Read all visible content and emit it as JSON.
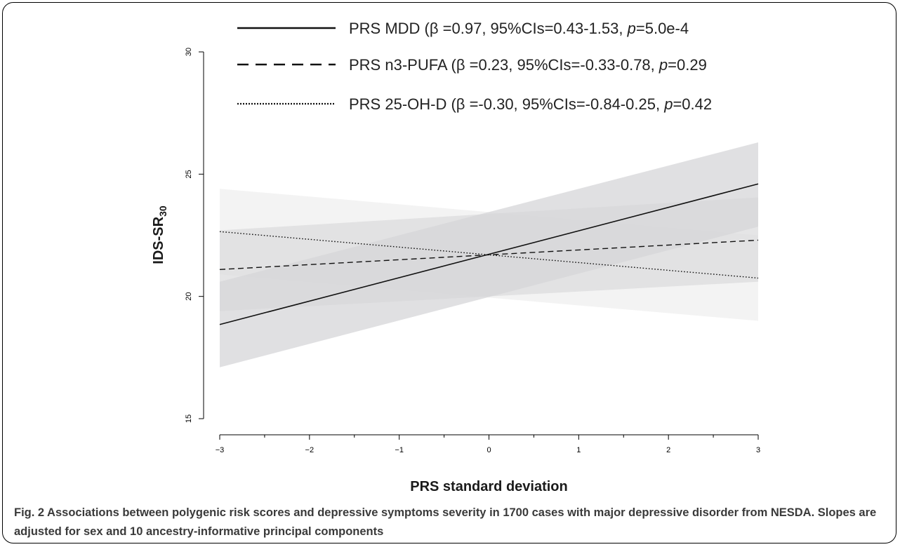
{
  "chart_data": {
    "type": "line",
    "x": [
      -3,
      3
    ],
    "xlabel": "PRS standard deviation",
    "ylabel": "IDS-SR",
    "ylabel_subscript": "30",
    "xlim": [
      -3,
      3
    ],
    "ylim": [
      15,
      30
    ],
    "x_ticks": [
      "−3",
      "−2",
      "−1",
      "0",
      "1",
      "2",
      "3"
    ],
    "y_ticks": [
      "15",
      "20",
      "25",
      "30"
    ],
    "grid": false,
    "legend_position": "top",
    "series": [
      {
        "name": "PRS MDD",
        "style": "solid",
        "label_prefix": "PRS MDD (",
        "label_beta": "β =0.97, 95%CIs=0.43-1.53, ",
        "label_p": "p",
        "label_p_value": "=5.0e-4",
        "y": [
          18.85,
          24.6
        ],
        "ci_lower": [
          17.1,
          22.85
        ],
        "ci_upper": [
          20.6,
          26.3
        ],
        "band_color": "#d6d6d8"
      },
      {
        "name": "PRS n3-PUFA",
        "style": "dashed",
        "label_prefix": "PRS n3-PUFA (",
        "label_beta": "β =0.23, 95%CIs=-0.33-0.78, ",
        "label_p": "p",
        "label_p_value": "=0.29",
        "y": [
          21.1,
          22.3
        ],
        "ci_lower": [
          19.4,
          20.6
        ],
        "ci_upper": [
          22.7,
          24.05
        ],
        "band_color": "#dcdcde"
      },
      {
        "name": "PRS 25-OH-D",
        "style": "dotted",
        "label_prefix": "PRS 25-OH-D (",
        "label_beta": "β =-0.30, 95%CIs=-0.84-0.25, ",
        "label_p": "p",
        "label_p_value": "=0.42",
        "y": [
          22.65,
          20.75
        ],
        "ci_lower": [
          20.9,
          19.0
        ],
        "ci_upper": [
          24.4,
          22.5
        ],
        "band_color": "#efefef"
      }
    ]
  },
  "caption": {
    "text": "Fig. 2 Associations between polygenic risk scores and depressive symptoms severity in 1700 cases with major depressive disorder from NESDA. Slopes are adjusted for sex and 10 ancestry-informative principal components"
  }
}
